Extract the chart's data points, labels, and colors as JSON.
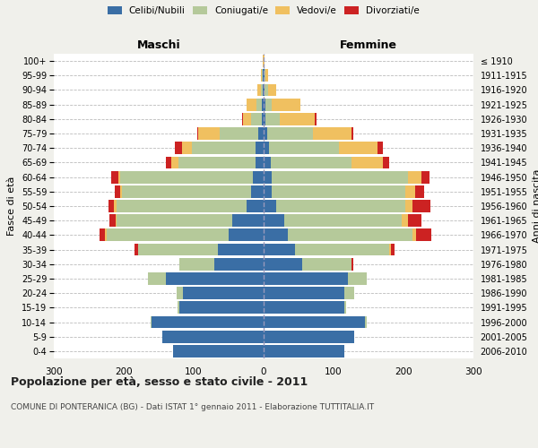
{
  "age_groups": [
    "0-4",
    "5-9",
    "10-14",
    "15-19",
    "20-24",
    "25-29",
    "30-34",
    "35-39",
    "40-44",
    "45-49",
    "50-54",
    "55-59",
    "60-64",
    "65-69",
    "70-74",
    "75-79",
    "80-84",
    "85-89",
    "90-94",
    "95-99",
    "100+"
  ],
  "birth_years": [
    "2006-2010",
    "2001-2005",
    "1996-2000",
    "1991-1995",
    "1986-1990",
    "1981-1985",
    "1976-1980",
    "1971-1975",
    "1966-1970",
    "1961-1965",
    "1956-1960",
    "1951-1955",
    "1946-1950",
    "1941-1945",
    "1936-1940",
    "1931-1935",
    "1926-1930",
    "1921-1925",
    "1916-1920",
    "1911-1915",
    "≤ 1910"
  ],
  "colors": {
    "celibi": "#3a6ea5",
    "coniugati": "#b5c99a",
    "vedovi": "#f0c060",
    "divorziati": "#cc2222"
  },
  "maschi": {
    "celibi": [
      130,
      145,
      160,
      120,
      115,
      140,
      70,
      65,
      50,
      45,
      25,
      18,
      15,
      12,
      12,
      8,
      3,
      2,
      1,
      1,
      0
    ],
    "coniugati": [
      0,
      0,
      2,
      3,
      10,
      25,
      50,
      115,
      175,
      165,
      185,
      185,
      190,
      110,
      90,
      55,
      15,
      8,
      3,
      1,
      0
    ],
    "vedovi": [
      0,
      0,
      0,
      0,
      0,
      0,
      0,
      0,
      2,
      2,
      4,
      2,
      3,
      10,
      15,
      30,
      12,
      15,
      5,
      2,
      1
    ],
    "divorziati": [
      0,
      0,
      0,
      0,
      0,
      0,
      0,
      5,
      8,
      8,
      8,
      8,
      10,
      8,
      10,
      2,
      1,
      0,
      0,
      0,
      0
    ]
  },
  "femmine": {
    "nubili": [
      115,
      130,
      145,
      115,
      115,
      120,
      55,
      45,
      35,
      30,
      18,
      12,
      12,
      10,
      8,
      5,
      3,
      2,
      1,
      1,
      0
    ],
    "coniugate": [
      0,
      0,
      2,
      3,
      15,
      28,
      70,
      135,
      178,
      168,
      185,
      190,
      195,
      115,
      100,
      65,
      20,
      10,
      5,
      1,
      0
    ],
    "vedove": [
      0,
      0,
      0,
      0,
      0,
      0,
      0,
      2,
      5,
      8,
      10,
      15,
      18,
      45,
      55,
      55,
      50,
      40,
      12,
      4,
      1
    ],
    "divorziate": [
      0,
      0,
      0,
      0,
      0,
      0,
      3,
      5,
      22,
      20,
      25,
      12,
      12,
      10,
      8,
      3,
      2,
      0,
      0,
      0,
      0
    ]
  },
  "xlim": 300,
  "title": "Popolazione per età, sesso e stato civile - 2011",
  "subtitle": "COMUNE DI PONTERANICA (BG) - Dati ISTAT 1° gennaio 2011 - Elaborazione TUTTITALIA.IT",
  "ylabel_left": "Fasce di età",
  "ylabel_right": "Anni di nascita",
  "xlabel_left": "Maschi",
  "xlabel_right": "Femmine",
  "bg_color": "#f0f0eb",
  "plot_bg": "#ffffff"
}
